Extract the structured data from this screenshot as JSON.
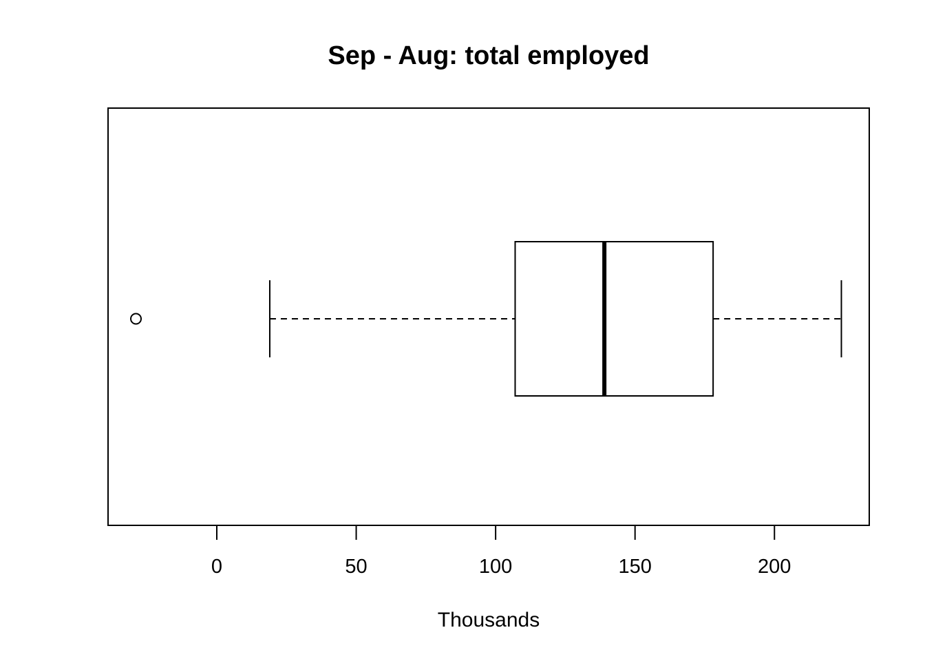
{
  "chart_data": {
    "type": "boxplot",
    "orientation": "horizontal",
    "title": "Sep - Aug: total employed",
    "xlabel": "Thousands",
    "ylabel": "",
    "xlim": [
      -39,
      234
    ],
    "xticks": [
      0,
      50,
      100,
      150,
      200
    ],
    "xtick_labels": [
      "0",
      "50",
      "100",
      "150",
      "200"
    ],
    "grid": false,
    "box": {
      "whisker_low": 19,
      "q1": 107,
      "median": 139,
      "q3": 178,
      "whisker_high": 224,
      "outliers": [
        -29
      ]
    },
    "colors": {
      "stroke": "#000000",
      "background": "#ffffff"
    }
  }
}
